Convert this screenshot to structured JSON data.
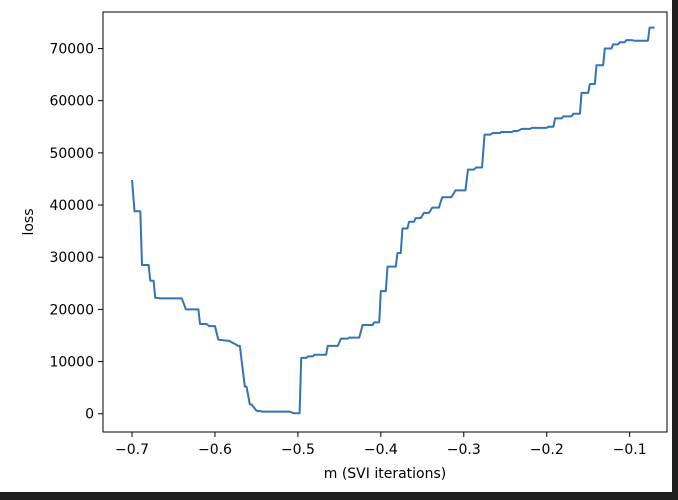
{
  "chart_data": {
    "type": "line",
    "xlabel": "m (SVI iterations)",
    "ylabel": "loss",
    "xlim": [
      -0.735,
      -0.055
    ],
    "ylim": [
      -3500,
      77000
    ],
    "xticks": [
      -0.7,
      -0.6,
      -0.5,
      -0.4,
      -0.3,
      -0.2,
      -0.1
    ],
    "xtick_labels": [
      "−0.7",
      "−0.6",
      "−0.5",
      "−0.4",
      "−0.3",
      "−0.2",
      "−0.1"
    ],
    "yticks": [
      0,
      10000,
      20000,
      30000,
      40000,
      50000,
      60000,
      70000
    ],
    "ytick_labels": [
      "0",
      "10000",
      "20000",
      "30000",
      "40000",
      "50000",
      "60000",
      "70000"
    ],
    "grid": false,
    "line_color": "#3374b4",
    "series": [
      {
        "x": [
          -0.7,
          -0.697,
          -0.69,
          -0.688,
          -0.68,
          -0.678,
          -0.674,
          -0.672,
          -0.67,
          -0.666,
          -0.664,
          -0.64,
          -0.635,
          -0.62,
          -0.618,
          -0.61,
          -0.607,
          -0.6,
          -0.596,
          -0.585,
          -0.583,
          -0.572,
          -0.57,
          -0.564,
          -0.562,
          -0.558,
          -0.556,
          -0.55,
          -0.548,
          -0.545,
          -0.543,
          -0.54,
          -0.538,
          -0.51,
          -0.505,
          -0.498,
          -0.496,
          -0.49,
          -0.488,
          -0.482,
          -0.48,
          -0.466,
          -0.464,
          -0.452,
          -0.448,
          -0.44,
          -0.438,
          -0.426,
          -0.422,
          -0.41,
          -0.408,
          -0.402,
          -0.4,
          -0.394,
          -0.392,
          -0.382,
          -0.38,
          -0.376,
          -0.374,
          -0.368,
          -0.366,
          -0.36,
          -0.358,
          -0.352,
          -0.348,
          -0.342,
          -0.338,
          -0.33,
          -0.326,
          -0.315,
          -0.31,
          -0.298,
          -0.295,
          -0.288,
          -0.285,
          -0.278,
          -0.275,
          -0.268,
          -0.265,
          -0.256,
          -0.255,
          -0.242,
          -0.24,
          -0.235,
          -0.23,
          -0.22,
          -0.218,
          -0.2,
          -0.198,
          -0.192,
          -0.19,
          -0.182,
          -0.18,
          -0.17,
          -0.168,
          -0.16,
          -0.158,
          -0.15,
          -0.148,
          -0.142,
          -0.14,
          -0.132,
          -0.13,
          -0.122,
          -0.12,
          -0.114,
          -0.112,
          -0.106,
          -0.104,
          -0.098,
          -0.094,
          -0.078,
          -0.076,
          -0.07
        ],
        "values": [
          44800,
          38800,
          38800,
          28500,
          28500,
          25500,
          25500,
          22200,
          22200,
          22100,
          22100,
          22100,
          20000,
          20000,
          17200,
          17200,
          16800,
          16800,
          14200,
          14000,
          14000,
          13000,
          13000,
          5200,
          5200,
          1800,
          1800,
          600,
          500,
          500,
          400,
          400,
          400,
          400,
          100,
          100,
          10700,
          10700,
          11000,
          11000,
          11300,
          11300,
          13000,
          13000,
          14400,
          14400,
          14600,
          14600,
          17000,
          17000,
          17500,
          17500,
          23500,
          23500,
          28200,
          28200,
          30800,
          30800,
          35500,
          35500,
          36800,
          36800,
          37500,
          37500,
          38500,
          38500,
          39500,
          39500,
          41500,
          41500,
          42800,
          42800,
          46800,
          46800,
          47200,
          47200,
          53500,
          53500,
          53800,
          53800,
          54000,
          54000,
          54200,
          54200,
          54600,
          54600,
          54800,
          54800,
          55000,
          55000,
          56600,
          56600,
          57000,
          57000,
          57500,
          57500,
          61500,
          61500,
          63200,
          63200,
          66800,
          66800,
          70000,
          70000,
          70800,
          70800,
          71200,
          71200,
          71600,
          71600,
          71500,
          71500,
          74000,
          74000
        ]
      }
    ]
  }
}
